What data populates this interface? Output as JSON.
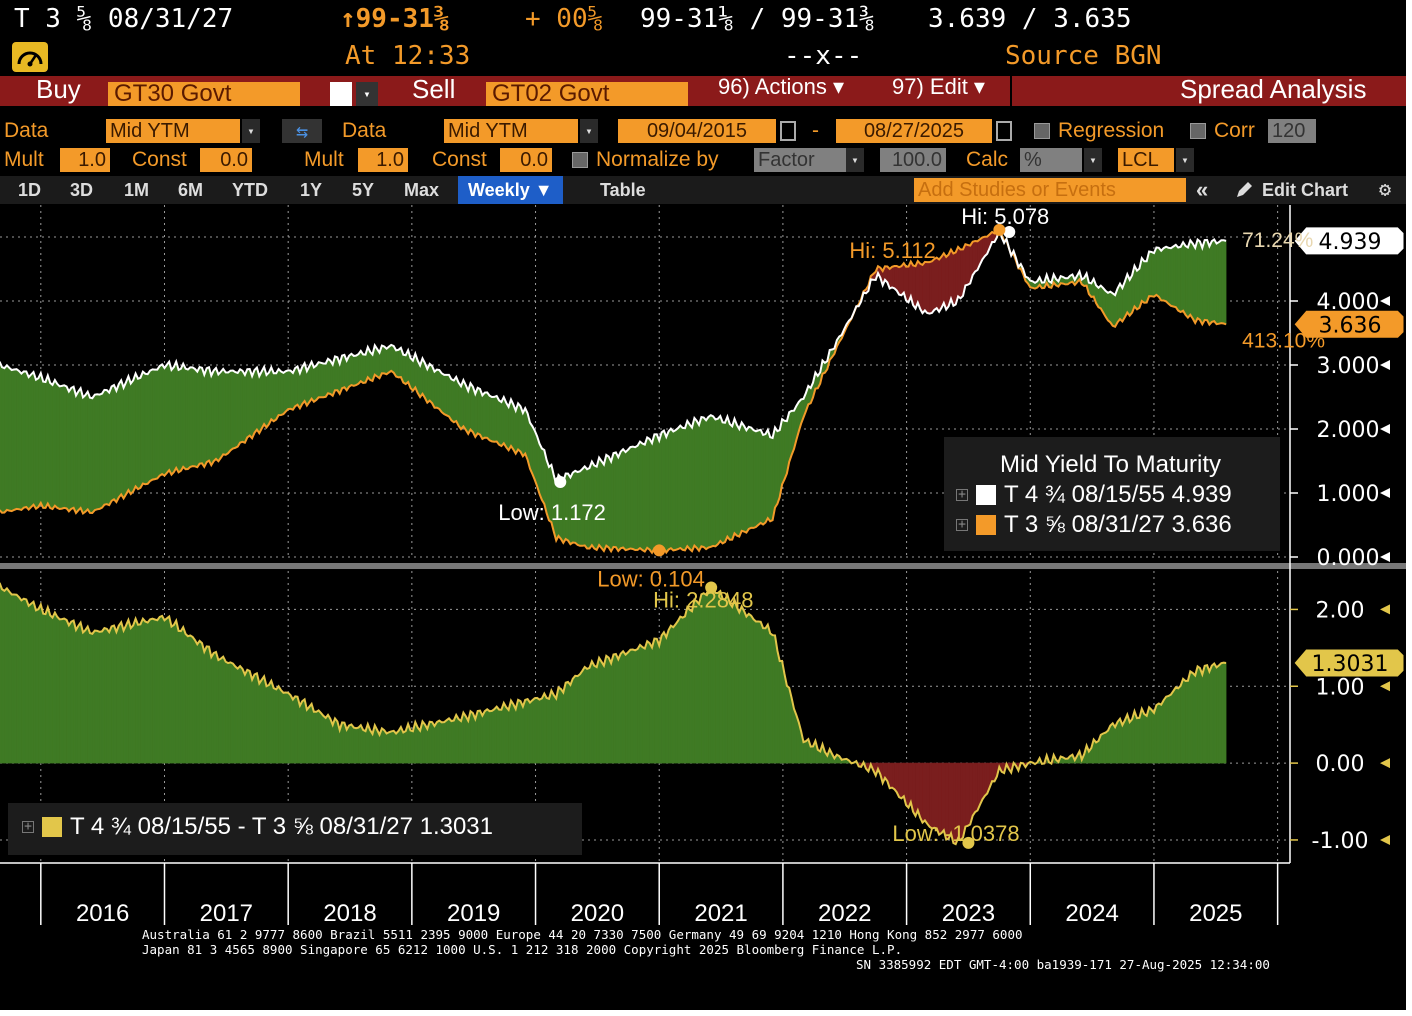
{
  "header": {
    "ticker": "T 3 ⅝ 08/31/27",
    "price": "↑99-31⅜",
    "change": "+ 00⅝",
    "bid_ask": "99-31⅛ / 99-31⅜",
    "yields": "3.639 / 3.635",
    "time": "At 12:33",
    "size": "--x--",
    "source": "Source BGN"
  },
  "toolbar": {
    "buy_label": "Buy",
    "buy_security": "GT30 Govt",
    "sell_label": "Sell",
    "sell_security": "GT02 Govt",
    "actions": "96) Actions ▾",
    "edit": "97) Edit ▾",
    "title": "Spread Analysis"
  },
  "controls": {
    "data1_label": "Data",
    "data1_value": "Mid YTM",
    "data2_label": "Data",
    "data2_value": "Mid YTM",
    "start_date": "09/04/2015",
    "date_sep": "-",
    "end_date": "08/27/2025",
    "regression": "Regression",
    "corr": "Corr",
    "corr_value": "120",
    "mult1_label": "Mult",
    "mult1_value": "1.0",
    "const1_label": "Const",
    "const1_value": "0.0",
    "mult2_label": "Mult",
    "mult2_value": "1.0",
    "const2_label": "Const",
    "const2_value": "0.0",
    "normalize": "Normalize by",
    "normalize_value": "Factor",
    "factor_value": "100.0",
    "calc_label": "Calc",
    "calc_value": "%",
    "currency": "LCL"
  },
  "tabs": {
    "items": [
      "1D",
      "3D",
      "1M",
      "6M",
      "YTD",
      "1Y",
      "5Y",
      "Max"
    ],
    "active": "Weekly ▼",
    "table": "Table",
    "studies_placeholder": "Add Studies or Events",
    "collapse": "«",
    "edit_chart": "Edit Chart"
  },
  "colors": {
    "amber": "#f39a29",
    "green_fill": "#3f7a24",
    "red_fill": "#7a1e1e",
    "spread_line": "#e2c64a",
    "blue_tab": "#1e5ec8"
  },
  "chart_data": [
    {
      "type": "line",
      "title": "Mid Yield To Maturity",
      "x": [
        "2015-09",
        "2016-01",
        "2016-06",
        "2017-01",
        "2017-06",
        "2018-01",
        "2018-06",
        "2018-11",
        "2019-06",
        "2019-12",
        "2020-03",
        "2020-06",
        "2021-01",
        "2021-06",
        "2021-12",
        "2022-03",
        "2022-06",
        "2022-10",
        "2023-03",
        "2023-06",
        "2023-10",
        "2024-01",
        "2024-06",
        "2024-09",
        "2025-01",
        "2025-05",
        "2025-08"
      ],
      "series": [
        {
          "name": "T 4 ¾ 08/15/55",
          "values": [
            3.0,
            2.8,
            2.5,
            3.0,
            2.9,
            2.9,
            3.1,
            3.3,
            2.7,
            2.3,
            1.2,
            1.4,
            1.9,
            2.2,
            1.9,
            2.5,
            3.3,
            4.4,
            3.8,
            4.0,
            5.078,
            4.3,
            4.4,
            4.1,
            4.8,
            4.9,
            4.939
          ]
        },
        {
          "name": "T 3 ⅝ 08/31/27",
          "values": [
            0.7,
            0.8,
            0.7,
            1.3,
            1.5,
            2.3,
            2.6,
            2.9,
            2.0,
            1.6,
            0.3,
            0.15,
            0.104,
            0.15,
            0.6,
            2.2,
            3.2,
            4.5,
            4.6,
            4.8,
            5.112,
            4.2,
            4.3,
            3.6,
            4.1,
            3.7,
            3.636
          ]
        }
      ],
      "ylim": [
        0,
        5.5
      ],
      "ytick_labels": [
        "0.000",
        "1.000",
        "2.000",
        "3.000",
        "4.000"
      ],
      "last_values": [
        "4.939",
        "3.636"
      ],
      "pct_labels": [
        "71.24%",
        "413.10%"
      ],
      "annotations": {
        "hi_long": "Hi: 5.078",
        "hi_short": "Hi: 5.112",
        "low_long": "Low: 1.172",
        "low_short": "Low: 0.104"
      },
      "legend_entries": [
        "T 4 ¾  08/15/55 4.939",
        "T 3 ⅝  08/31/27 3.636"
      ]
    },
    {
      "type": "area",
      "x": [
        "2015-09",
        "2016-01",
        "2016-06",
        "2017-01",
        "2017-06",
        "2018-01",
        "2018-06",
        "2018-11",
        "2019-06",
        "2019-12",
        "2020-03",
        "2020-06",
        "2021-01",
        "2021-06",
        "2021-12",
        "2022-03",
        "2022-06",
        "2022-10",
        "2023-03",
        "2023-06",
        "2023-10",
        "2024-01",
        "2024-06",
        "2024-09",
        "2025-01",
        "2025-05",
        "2025-08"
      ],
      "series": [
        {
          "name": "T 4 ¾ 08/15/55 - T 3 ⅝ 08/31/27",
          "values": [
            2.3,
            2.0,
            1.7,
            1.9,
            1.4,
            0.9,
            0.5,
            0.4,
            0.6,
            0.8,
            0.9,
            1.25,
            1.6,
            2.2848,
            1.7,
            0.3,
            0.1,
            -0.1,
            -0.8,
            -1.0378,
            -0.1,
            0.0,
            0.1,
            0.5,
            0.7,
            1.2,
            1.3031
          ]
        }
      ],
      "ylim": [
        -1.3,
        2.5
      ],
      "ytick_labels": [
        "-1.00",
        "0.00",
        "1.00",
        "2.00"
      ],
      "last_value": "1.3031",
      "annotations": {
        "hi": "Hi: 2.2848",
        "low": "Low: -1.0378"
      },
      "legend_entry": "T 4 ¾  08/15/55 - T 3 ⅝  08/31/27 1.3031"
    }
  ],
  "xaxis_years": [
    "2016",
    "2017",
    "2018",
    "2019",
    "2020",
    "2021",
    "2022",
    "2023",
    "2024",
    "2025"
  ],
  "footer": {
    "line1": "Australia 61 2 9777 8600 Brazil 5511 2395 9000 Europe 44 20 7330 7500 Germany 49 69 9204 1210 Hong Kong 852 2977 6000",
    "line2": "Japan 81 3 4565 8900        Singapore 65 6212 1000        U.S. 1 212 318 2000          Copyright 2025 Bloomberg Finance L.P.",
    "line3": "SN 3385992 EDT  GMT-4:00 ba1939-171 27-Aug-2025 12:34:00"
  }
}
